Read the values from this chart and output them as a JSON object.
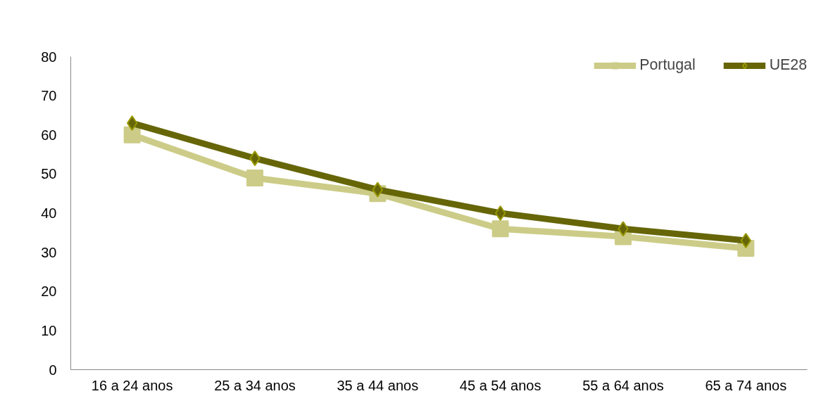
{
  "chart_data": {
    "type": "line",
    "categories": [
      "16 a 24 anos",
      "25 a 34 anos",
      "35 a 44 anos",
      "45 a 54 anos",
      "55 a 64 anos",
      "65 a 74 anos"
    ],
    "series": [
      {
        "name": "UE28",
        "color": "#666608",
        "marker": "diamond",
        "values": [
          63,
          54,
          46,
          40,
          36,
          33
        ]
      },
      {
        "name": "Portugal",
        "color": "#cccc88",
        "marker": "square",
        "values": [
          60,
          49,
          45,
          36,
          34,
          31
        ]
      }
    ],
    "ylim": [
      0,
      80
    ],
    "yticks": [
      0,
      10,
      20,
      30,
      40,
      50,
      60,
      70,
      80
    ],
    "grid": false,
    "legend": "top right",
    "line_style": "solid"
  }
}
